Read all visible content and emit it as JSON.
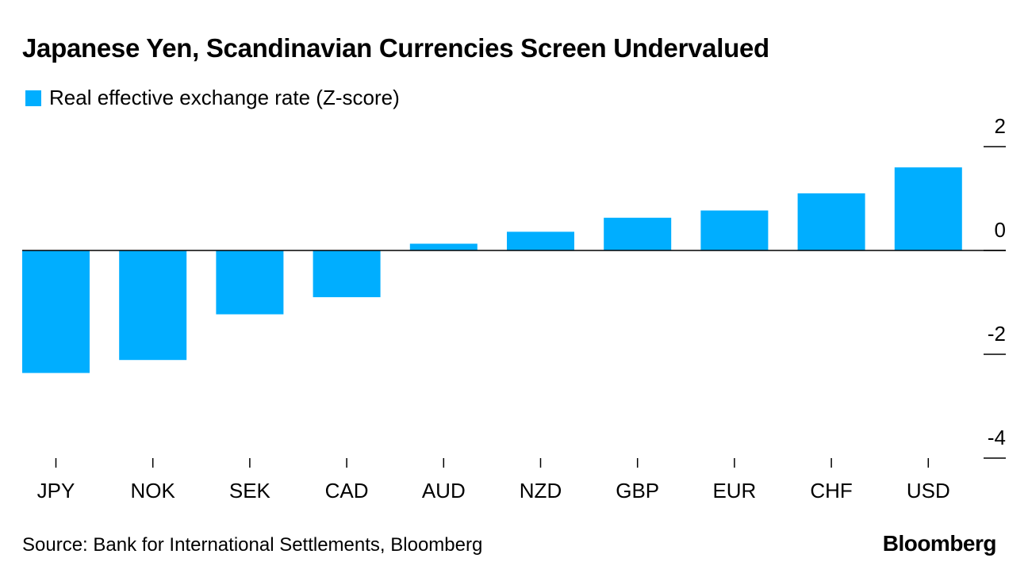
{
  "title": "Japanese Yen, Scandinavian Currencies Screen Undervalued",
  "source": "Source: Bank for International Settlements, Bloomberg",
  "logo": "Bloomberg",
  "colors": {
    "bar": "#00aeff",
    "axis": "#000000"
  },
  "chart_data": {
    "type": "bar",
    "title": "Japanese Yen, Scandinavian Currencies Screen Undervalued",
    "categories": [
      "JPY",
      "NOK",
      "SEK",
      "CAD",
      "AUD",
      "NZD",
      "GBP",
      "EUR",
      "CHF",
      "USD"
    ],
    "series": [
      {
        "name": "Real effective exchange rate (Z-score)",
        "values": [
          -2.36,
          -2.11,
          -1.23,
          -0.9,
          0.13,
          0.36,
          0.63,
          0.77,
          1.1,
          1.6
        ]
      }
    ],
    "ylim": [
      -4,
      2
    ],
    "yticks": [
      "2",
      "0",
      "-2",
      "-4"
    ],
    "ytick_values": [
      2,
      0,
      -2,
      -4
    ],
    "y_axis_position": "right",
    "grid": false,
    "legend": "top-left"
  }
}
